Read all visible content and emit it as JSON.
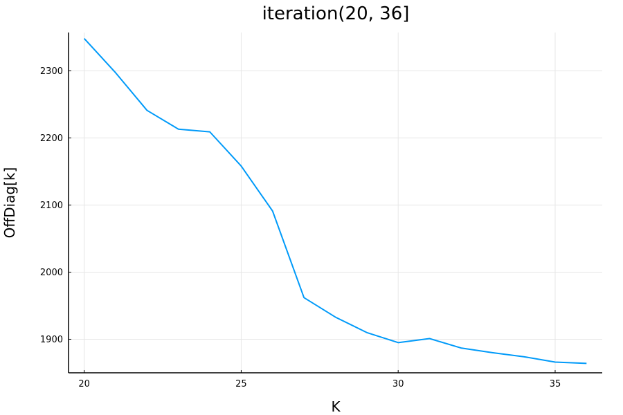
{
  "chart_data": {
    "type": "line",
    "title": "iteration(20, 36]",
    "xlabel": "K",
    "ylabel": "OffDiag[k]",
    "xlim": [
      19.5,
      36.5
    ],
    "ylim": [
      1850,
      2357
    ],
    "xticks": [
      20,
      25,
      30,
      35
    ],
    "yticks": [
      1900,
      2000,
      2100,
      2200,
      2300
    ],
    "grid": true,
    "series": [
      {
        "color": "#009af9",
        "x": [
          20,
          21,
          22,
          23,
          24,
          25,
          26,
          27,
          28,
          29,
          30,
          31,
          32,
          33,
          34,
          35,
          36
        ],
        "y": [
          2348,
          2297,
          2241,
          2213,
          2209,
          2158,
          2091,
          1962,
          1933,
          1910,
          1895,
          1901,
          1887,
          1880,
          1874,
          1866,
          1864
        ]
      }
    ]
  }
}
